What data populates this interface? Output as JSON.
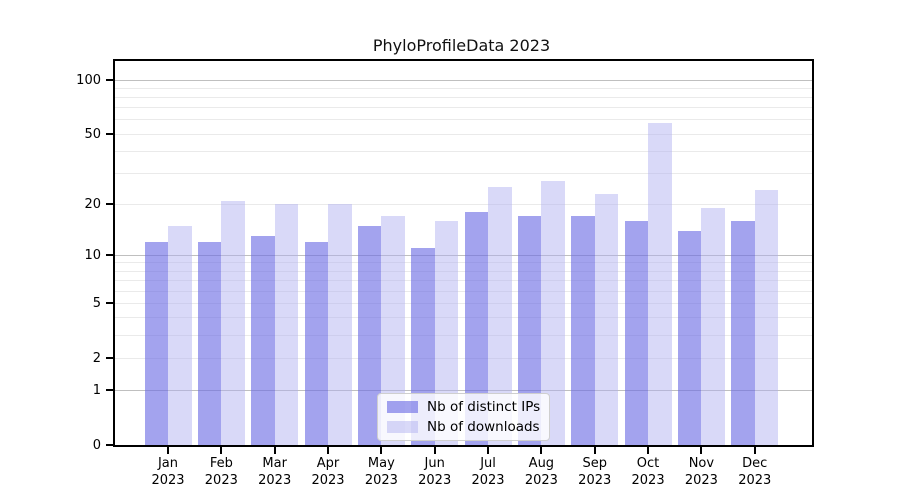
{
  "title": "PhyloProfileData 2023",
  "colors": {
    "bar_ips": "rgba(107,107,228,0.62)",
    "bar_downloads": "rgba(174,174,240,0.47)",
    "grid_minor": "#eaeaea",
    "grid_major": "#bfbfbf",
    "axis": "#000000"
  },
  "legend": {
    "items": [
      {
        "label": "Nb of distinct IPs",
        "series_key": "ips"
      },
      {
        "label": "Nb of downloads",
        "series_key": "downloads"
      }
    ]
  },
  "chart_data": {
    "type": "bar",
    "title": "PhyloProfileData 2023",
    "xlabel": "",
    "ylabel": "",
    "yscale": "log1p",
    "ylim": [
      0,
      128
    ],
    "y_ticks": [
      0,
      1,
      2,
      5,
      10,
      20,
      50,
      100
    ],
    "y_major_gridlines": [
      1,
      10,
      100
    ],
    "y_minor_gridlines": [
      2,
      3,
      4,
      5,
      6,
      7,
      8,
      9,
      20,
      30,
      40,
      50,
      60,
      70,
      80,
      90
    ],
    "grid": true,
    "legend_position": "lower center",
    "categories": [
      {
        "month": "Jan",
        "year": "2023"
      },
      {
        "month": "Feb",
        "year": "2023"
      },
      {
        "month": "Mar",
        "year": "2023"
      },
      {
        "month": "Apr",
        "year": "2023"
      },
      {
        "month": "May",
        "year": "2023"
      },
      {
        "month": "Jun",
        "year": "2023"
      },
      {
        "month": "Jul",
        "year": "2023"
      },
      {
        "month": "Aug",
        "year": "2023"
      },
      {
        "month": "Sep",
        "year": "2023"
      },
      {
        "month": "Oct",
        "year": "2023"
      },
      {
        "month": "Nov",
        "year": "2023"
      },
      {
        "month": "Dec",
        "year": "2023"
      }
    ],
    "series": [
      {
        "name": "Nb of distinct IPs",
        "key": "ips",
        "values": [
          12,
          12,
          13,
          12,
          15,
          11,
          18,
          17,
          17,
          16,
          14,
          16
        ]
      },
      {
        "name": "Nb of downloads",
        "key": "downloads",
        "values": [
          15,
          21,
          20,
          20,
          17,
          16,
          25,
          27,
          23,
          58,
          19,
          24
        ]
      }
    ]
  }
}
